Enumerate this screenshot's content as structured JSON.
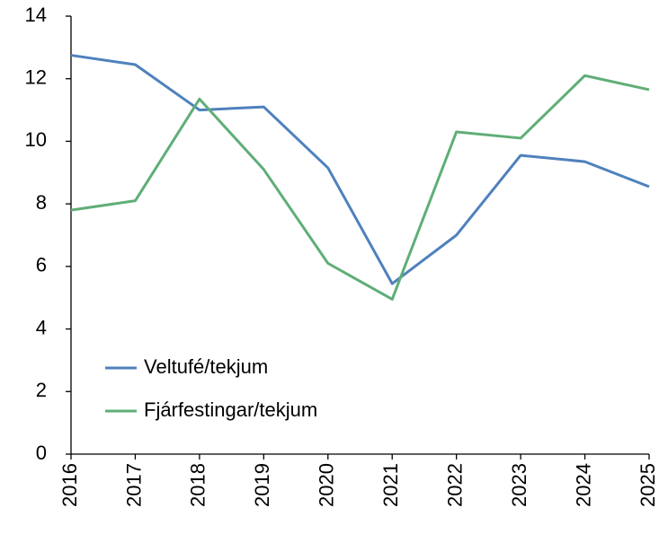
{
  "chart_data": {
    "type": "line",
    "categories": [
      "2016",
      "2017",
      "2018",
      "2019",
      "2020",
      "2021",
      "2022",
      "2023",
      "2024",
      "2025"
    ],
    "series": [
      {
        "name": "Veltufé/tekjum",
        "color": "#4f81bd",
        "values": [
          12.75,
          12.45,
          11.0,
          11.1,
          9.15,
          5.45,
          7.0,
          9.55,
          9.35,
          8.55
        ]
      },
      {
        "name": "Fjárfestingar/tekjum",
        "color": "#5fae77",
        "values": [
          7.8,
          8.1,
          11.35,
          9.1,
          6.1,
          4.95,
          10.3,
          10.1,
          12.1,
          11.65
        ]
      }
    ],
    "ylim": [
      0,
      14
    ],
    "yticks": [
      0,
      2,
      4,
      6,
      8,
      10,
      12,
      14
    ],
    "grid": false,
    "legend": "lower left"
  }
}
